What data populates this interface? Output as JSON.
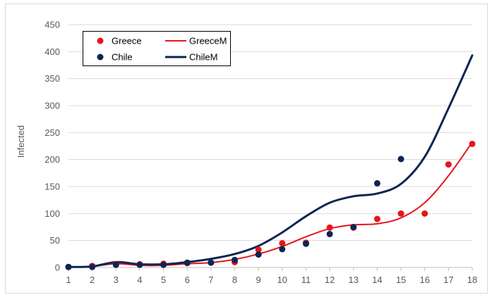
{
  "chart_data": {
    "type": "line",
    "title": "",
    "xlabel": "",
    "ylabel": "Infected",
    "x": [
      1,
      2,
      3,
      4,
      5,
      6,
      7,
      8,
      9,
      10,
      11,
      12,
      13,
      14,
      15,
      16,
      17,
      18
    ],
    "xlim": [
      1,
      18
    ],
    "ylim": [
      0,
      450
    ],
    "y_ticks": [
      0,
      50,
      100,
      150,
      200,
      250,
      300,
      350,
      400,
      450
    ],
    "x_ticks": [
      1,
      2,
      3,
      4,
      5,
      6,
      7,
      8,
      9,
      10,
      11,
      12,
      13,
      14,
      15,
      16,
      17,
      18
    ],
    "grid": "horizontal",
    "legend_position": "top-left",
    "series": [
      {
        "name": "Greece",
        "kind": "scatter",
        "color": "#e8141b",
        "points": [
          [
            1,
            1
          ],
          [
            2,
            3
          ],
          [
            3,
            6
          ],
          [
            4,
            6
          ],
          [
            5,
            7
          ],
          [
            6,
            8
          ],
          [
            7,
            9
          ],
          [
            8,
            10
          ],
          [
            9,
            33
          ],
          [
            10,
            45
          ],
          [
            11,
            46
          ],
          [
            12,
            74
          ],
          [
            13,
            74
          ],
          [
            14,
            90
          ],
          [
            15,
            100
          ],
          [
            16,
            100
          ],
          [
            17,
            191
          ],
          [
            18,
            229
          ]
        ]
      },
      {
        "name": "Chile",
        "kind": "scatter",
        "color": "#0b2555",
        "points": [
          [
            1,
            1
          ],
          [
            2,
            1
          ],
          [
            3,
            5
          ],
          [
            4,
            5
          ],
          [
            5,
            5
          ],
          [
            6,
            9
          ],
          [
            7,
            9
          ],
          [
            8,
            14
          ],
          [
            9,
            24
          ],
          [
            10,
            34
          ],
          [
            11,
            44
          ],
          [
            12,
            62
          ],
          [
            13,
            75
          ],
          [
            14,
            156
          ],
          [
            15,
            201
          ]
        ]
      },
      {
        "name": "GreeceM",
        "kind": "line",
        "color": "#e8141b",
        "points": [
          [
            1,
            1
          ],
          [
            2,
            2
          ],
          [
            3,
            7
          ],
          [
            4,
            4
          ],
          [
            5,
            4
          ],
          [
            6,
            7
          ],
          [
            7,
            9
          ],
          [
            8,
            15
          ],
          [
            9,
            25
          ],
          [
            10,
            39
          ],
          [
            11,
            57
          ],
          [
            12,
            72
          ],
          [
            13,
            79
          ],
          [
            14,
            81
          ],
          [
            15,
            92
          ],
          [
            16,
            120
          ],
          [
            17,
            170
          ],
          [
            18,
            232
          ]
        ]
      },
      {
        "name": "ChileM",
        "kind": "line",
        "color": "#0b2555",
        "points": [
          [
            1,
            1
          ],
          [
            2,
            2
          ],
          [
            3,
            10
          ],
          [
            4,
            6
          ],
          [
            5,
            6
          ],
          [
            6,
            10
          ],
          [
            7,
            16
          ],
          [
            8,
            25
          ],
          [
            9,
            40
          ],
          [
            10,
            65
          ],
          [
            11,
            95
          ],
          [
            12,
            120
          ],
          [
            13,
            132
          ],
          [
            14,
            137
          ],
          [
            15,
            155
          ],
          [
            16,
            205
          ],
          [
            17,
            295
          ],
          [
            18,
            393
          ]
        ]
      }
    ]
  }
}
